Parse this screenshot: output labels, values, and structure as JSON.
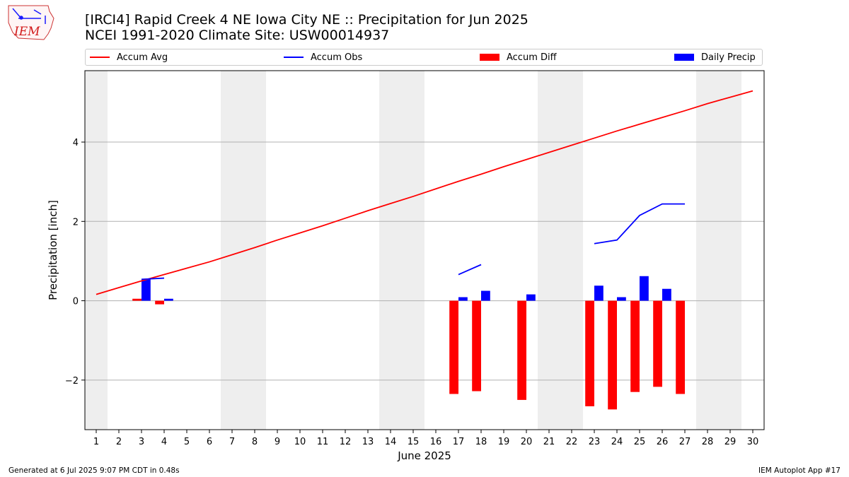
{
  "logo_text": "IEM",
  "header": {
    "title_line1": "[IRCI4] Rapid Creek 4 NE Iowa City NE :: Precipitation for Jun 2025",
    "title_line2": "NCEI 1991-2020 Climate Site: USW00014937"
  },
  "footer": {
    "generated": "Generated at 6 Jul 2025 9:07 PM CDT in 0.48s",
    "app": "IEM Autoplot App #17"
  },
  "colors": {
    "avg": "#ff0000",
    "obs": "#0000ff",
    "diff": "#ff0000",
    "daily": "#0000ff",
    "weekend": "#eeeeee",
    "grid": "#b0b0b0"
  },
  "chart_data": {
    "type": "bar",
    "xlabel": "June 2025",
    "ylabel": "Precipitation [inch]",
    "x_ticks": [
      "1",
      "2",
      "3",
      "4",
      "5",
      "6",
      "7",
      "8",
      "9",
      "10",
      "11",
      "12",
      "13",
      "14",
      "15",
      "16",
      "17",
      "18",
      "19",
      "20",
      "21",
      "22",
      "23",
      "24",
      "25",
      "26",
      "27",
      "28",
      "29",
      "30"
    ],
    "y_ticks": [
      "4",
      "2",
      "0",
      "−2"
    ],
    "y_tick_values": [
      4,
      2,
      0,
      -2
    ],
    "xlim": [
      0.5,
      30.5
    ],
    "ylim": [
      -3.25,
      5.8
    ],
    "grid": "y",
    "legend_placement": "top",
    "weekend_days": [
      1,
      7,
      8,
      14,
      15,
      21,
      22,
      28,
      29
    ],
    "series": [
      {
        "name": "Accum Avg",
        "type": "line",
        "x": [
          1,
          2,
          3,
          4,
          5,
          6,
          7,
          8,
          9,
          10,
          11,
          12,
          13,
          14,
          15,
          16,
          17,
          18,
          19,
          20,
          21,
          22,
          23,
          24,
          25,
          26,
          27,
          28,
          29,
          30
        ],
        "values": [
          0.16,
          0.33,
          0.5,
          0.66,
          0.82,
          0.98,
          1.16,
          1.34,
          1.53,
          1.71,
          1.89,
          2.08,
          2.27,
          2.45,
          2.63,
          2.82,
          3.01,
          3.19,
          3.38,
          3.56,
          3.74,
          3.92,
          4.1,
          4.28,
          4.45,
          4.62,
          4.79,
          4.97,
          5.13,
          5.29
        ]
      },
      {
        "name": "Accum Obs",
        "type": "line",
        "segments": [
          {
            "x": [
              3,
              4
            ],
            "values": [
              0.54,
              0.57
            ]
          },
          {
            "x": [
              17,
              18
            ],
            "values": [
              0.66,
              0.91
            ]
          },
          {
            "x": [
              23,
              24,
              25,
              26,
              27
            ],
            "values": [
              1.44,
              1.53,
              2.15,
              2.44,
              2.44
            ]
          }
        ]
      },
      {
        "name": "Accum Diff",
        "type": "bar",
        "x": [
          3,
          4,
          17,
          18,
          20,
          23,
          24,
          25,
          26,
          27
        ],
        "values": [
          0.05,
          -0.09,
          -2.35,
          -2.28,
          -2.5,
          -2.66,
          -2.74,
          -2.3,
          -2.17,
          -2.35
        ]
      },
      {
        "name": "Daily Precip",
        "type": "bar",
        "x": [
          3,
          4,
          17,
          18,
          20,
          23,
          24,
          25,
          26,
          27
        ],
        "values": [
          0.54,
          0.05,
          0.09,
          0.25,
          0.16,
          0.38,
          0.09,
          0.62,
          0.3,
          0.0
        ]
      }
    ]
  },
  "legend": [
    {
      "label": "Accum Avg",
      "kind": "line",
      "color": "#ff0000"
    },
    {
      "label": "Accum Obs",
      "kind": "line",
      "color": "#0000ff"
    },
    {
      "label": "Accum Diff",
      "kind": "box",
      "color": "#ff0000"
    },
    {
      "label": "Daily Precip",
      "kind": "box",
      "color": "#0000ff"
    }
  ]
}
